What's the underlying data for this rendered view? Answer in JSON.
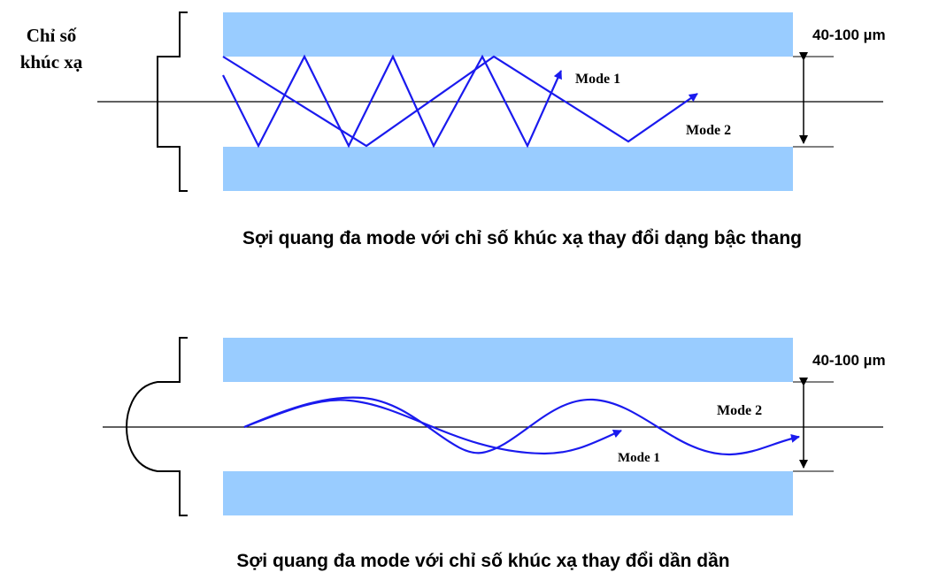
{
  "colors": {
    "cladding": "#99ccff",
    "ray": "#1a1aee",
    "line": "#000000"
  },
  "step_index": {
    "index_label_line1": "Chỉ số",
    "index_label_line2": "khúc xạ",
    "thickness": "40-100 µm",
    "mode1": "Mode 1",
    "mode2": "Mode 2",
    "caption": "Sợi quang đa mode với chỉ số khúc xạ thay đổi dạng bậc thang"
  },
  "graded_index": {
    "thickness": "40-100 µm",
    "mode1": "Mode 1",
    "mode2": "Mode 2",
    "caption": "Sợi quang đa mode với chỉ số khúc xạ thay đổi dần dần"
  }
}
